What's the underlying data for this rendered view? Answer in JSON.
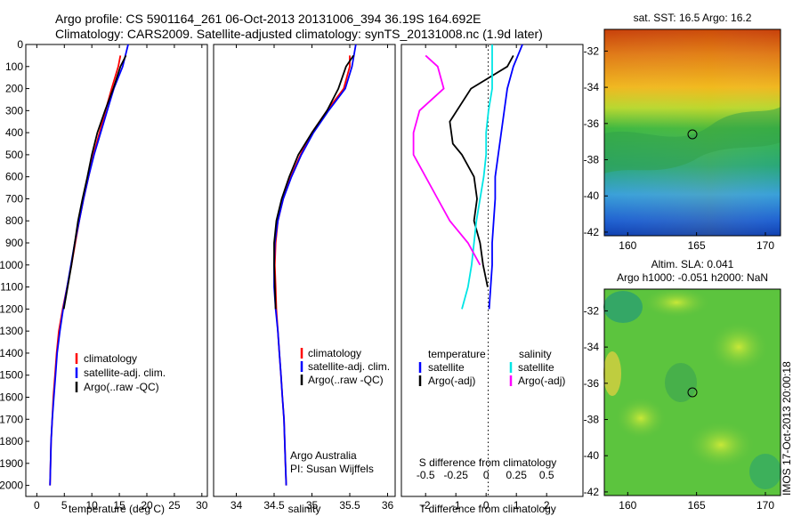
{
  "header": {
    "line1": "Argo profile: CS 5901164_261 06-Oct-2013 20131006_394 36.19S 164.692E",
    "line2": "Climatology: CARS2009. Satellite-adjusted climatology: synTS_20131008.nc (1.9d later)"
  },
  "depth_ticks": [
    "0",
    "100",
    "200",
    "300",
    "400",
    "500",
    "600",
    "700",
    "800",
    "900",
    "1000",
    "1100",
    "1200",
    "1300",
    "1400",
    "1500",
    "1600",
    "1700",
    "1800",
    "1900",
    "2000"
  ],
  "colors": {
    "climatology": "#ff0000",
    "satellite": "#0000ff",
    "argo": "#000000",
    "sal_sat": "#00e5e5",
    "sal_argo": "#ff00ff",
    "circle": "#000000"
  },
  "panels": {
    "temperature": {
      "xlabel": "temperature (deg C)",
      "xticks": [
        "0",
        "5",
        "10",
        "15",
        "20",
        "25",
        "30"
      ],
      "legend": [
        "climatology",
        "satellite-adj. clim.",
        "Argo(..raw -QC)"
      ]
    },
    "salinity": {
      "xlabel": "salinity",
      "xticks": [
        "34",
        "34.5",
        "35",
        "35.5",
        "36"
      ],
      "legend": [
        "climatology",
        "satellite-adj. clim.",
        "Argo(..raw -QC)"
      ],
      "credit1": "Argo Australia",
      "credit2": "PI: Susan Wijffels"
    },
    "difference": {
      "xlabel": "T difference from climatology",
      "top_label": "S difference from climatology",
      "s_ticks": [
        "-0.5",
        "-0.25",
        "0",
        "0.25",
        "0.5"
      ],
      "t_ticks": [
        "-2",
        "-1",
        "0",
        "1",
        "2"
      ],
      "legend_head_t": "temperature",
      "legend_head_s": "salinity",
      "legend_t": [
        "satellite",
        "Argo(-adj)"
      ],
      "legend_s": [
        "satellite",
        "Argo(-adj)"
      ]
    }
  },
  "maps": {
    "sst": {
      "title": "sat. SST: 16.5  Argo: 16.2",
      "yticks": [
        "-32",
        "-34",
        "-36",
        "-38",
        "-40",
        "-42"
      ],
      "xticks": [
        "160",
        "165",
        "170"
      ]
    },
    "sla": {
      "title1": "Altim. SLA: 0.041",
      "title2": "Argo h1000: -0.051 h2000: NaN",
      "yticks": [
        "-32",
        "-34",
        "-36",
        "-38",
        "-40",
        "-42"
      ],
      "xticks": [
        "160",
        "165",
        "170"
      ]
    }
  },
  "side_label": "IMOS 17-Oct-2013 20:00:18",
  "chart_data": [
    {
      "type": "line",
      "name": "temperature profile",
      "xlabel": "temperature (deg C)",
      "ylabel": "",
      "xlim": [
        -2,
        31
      ],
      "ylim": [
        2050,
        0
      ],
      "y_reversed": true,
      "series": [
        {
          "name": "climatology",
          "x": [
            15.2,
            14.8,
            13.6,
            12.5,
            11.4,
            10.3,
            9.4,
            8.5,
            7.7,
            7.0,
            6.3,
            5.5,
            4.7,
            4.0,
            3.6,
            3.3,
            3.0,
            2.8,
            2.6,
            2.5,
            2.4
          ],
          "y": [
            50,
            100,
            200,
            300,
            400,
            500,
            600,
            700,
            800,
            900,
            1000,
            1100,
            1200,
            1300,
            1400,
            1500,
            1600,
            1700,
            1800,
            1900,
            2000
          ]
        },
        {
          "name": "satellite-adj. clim.",
          "x": [
            16.6,
            15.6,
            14.0,
            12.8,
            11.6,
            10.4,
            9.4,
            8.5,
            7.7,
            6.9,
            6.2,
            5.5,
            4.8,
            4.2,
            3.7,
            3.4,
            3.1,
            2.8,
            2.6,
            2.5,
            2.4
          ],
          "y": [
            0,
            100,
            200,
            300,
            400,
            500,
            600,
            700,
            800,
            900,
            1000,
            1100,
            1200,
            1300,
            1400,
            1500,
            1600,
            1700,
            1800,
            1900,
            2000
          ]
        },
        {
          "name": "Argo(..raw -QC)",
          "x": [
            16.2,
            15.2,
            13.9,
            12.4,
            11.0,
            10.0,
            9.2,
            8.3,
            7.5,
            6.9,
            6.3,
            5.6,
            4.9
          ],
          "y": [
            50,
            100,
            200,
            300,
            400,
            500,
            600,
            700,
            800,
            900,
            1000,
            1100,
            1200
          ]
        }
      ]
    },
    {
      "type": "line",
      "name": "salinity profile",
      "xlabel": "salinity",
      "ylabel": "",
      "xlim": [
        33.7,
        36.1
      ],
      "ylim": [
        2050,
        0
      ],
      "y_reversed": true,
      "series": [
        {
          "name": "climatology",
          "x": [
            35.5,
            35.5,
            35.42,
            35.2,
            35.0,
            34.85,
            34.72,
            34.62,
            34.55,
            34.52,
            34.51,
            34.52,
            34.53,
            34.55,
            34.57,
            34.59,
            34.61,
            34.63,
            34.64,
            34.65,
            34.66
          ],
          "y": [
            50,
            100,
            200,
            300,
            400,
            500,
            600,
            700,
            800,
            900,
            1000,
            1100,
            1200,
            1300,
            1400,
            1500,
            1600,
            1700,
            1800,
            1900,
            2000
          ]
        },
        {
          "name": "satellite-adj. clim.",
          "x": [
            35.58,
            35.53,
            35.44,
            35.22,
            35.02,
            34.86,
            34.73,
            34.62,
            34.55,
            34.51,
            34.5,
            34.5,
            34.52,
            34.55,
            34.57,
            34.59,
            34.61,
            34.63,
            34.64,
            34.65,
            34.66
          ],
          "y": [
            0,
            100,
            200,
            300,
            400,
            500,
            600,
            700,
            800,
            900,
            1000,
            1100,
            1200,
            1300,
            1400,
            1500,
            1600,
            1700,
            1800,
            1900,
            2000
          ]
        },
        {
          "name": "Argo(..raw -QC)",
          "x": [
            35.55,
            35.45,
            35.35,
            35.2,
            35.0,
            34.82,
            34.7,
            34.6,
            34.53,
            34.5,
            34.5,
            34.51,
            34.52
          ],
          "y": [
            50,
            100,
            200,
            300,
            400,
            500,
            600,
            700,
            800,
            900,
            1000,
            1100,
            1200
          ]
        }
      ]
    },
    {
      "type": "line",
      "name": "difference from climatology",
      "xlabel": "T difference from climatology",
      "x2label": "S difference from climatology",
      "xlim": [
        -2.8,
        3.2
      ],
      "ylim": [
        2050,
        0
      ],
      "y_reversed": true,
      "series": [
        {
          "name": "temperature satellite",
          "x": [
            1.2,
            0.9,
            0.7,
            0.6,
            0.5,
            0.4,
            0.3,
            0.3,
            0.25,
            0.2,
            0.2,
            0.15,
            0.1
          ],
          "y": [
            0,
            100,
            200,
            300,
            400,
            500,
            600,
            700,
            800,
            900,
            1000,
            1100,
            1200
          ]
        },
        {
          "name": "temperature Argo(-adj)",
          "x": [
            0.9,
            0.7,
            -0.5,
            -1.2,
            -1.1,
            -0.8,
            -0.4,
            -0.3,
            -0.4,
            -0.2,
            -0.1,
            0.05
          ],
          "y": [
            50,
            100,
            200,
            350,
            450,
            500,
            600,
            700,
            800,
            900,
            1000,
            1100
          ]
        },
        {
          "name": "salinity satellite",
          "x": [
            0.05,
            0.05,
            0.05,
            0.02,
            0.0,
            0.0,
            -0.02,
            -0.05,
            -0.08,
            -0.1,
            -0.12,
            -0.15,
            -0.2
          ],
          "y": [
            0,
            100,
            200,
            300,
            400,
            500,
            600,
            700,
            800,
            900,
            1000,
            1100,
            1200
          ]
        },
        {
          "name": "salinity Argo(-adj)",
          "x": [
            -0.5,
            -0.4,
            -0.35,
            -0.55,
            -0.6,
            -0.6,
            -0.5,
            -0.4,
            -0.3,
            -0.15,
            -0.05
          ],
          "y": [
            50,
            100,
            200,
            300,
            400,
            500,
            600,
            700,
            800,
            900,
            1000
          ]
        }
      ]
    }
  ]
}
